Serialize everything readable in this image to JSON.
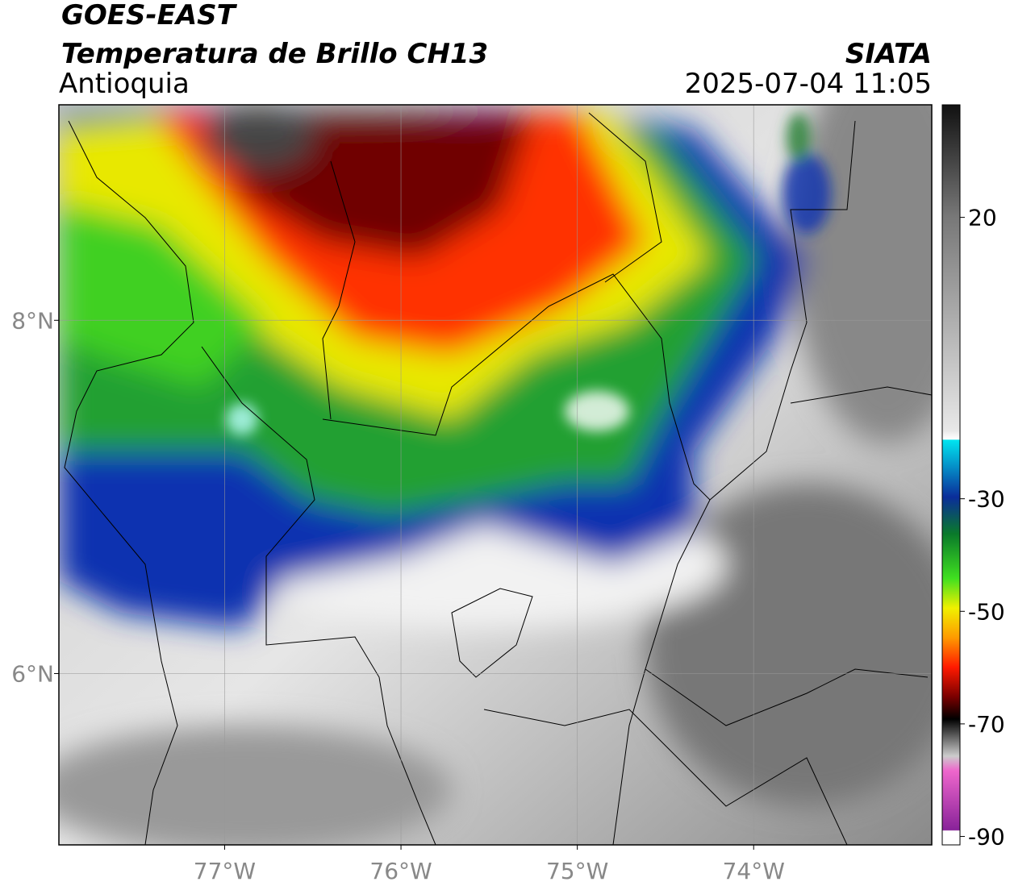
{
  "header": {
    "title": "GOES-EAST",
    "subtitle": "Temperatura de Brillo CH13",
    "region": "Antioquia",
    "source": "SIATA",
    "datetime": "2025-07-04 11:05"
  },
  "map": {
    "xlim": [
      -77.94,
      -72.99
    ],
    "ylim": [
      5.03,
      9.22
    ],
    "xticks": [
      {
        "value": -77,
        "label": "77°W"
      },
      {
        "value": -76,
        "label": "76°W"
      },
      {
        "value": -75,
        "label": "75°W"
      },
      {
        "value": -74,
        "label": "74°W"
      }
    ],
    "yticks": [
      {
        "value": 8,
        "label": "8°N"
      },
      {
        "value": 6,
        "label": "6°N"
      }
    ]
  },
  "colorbar": {
    "lim": [
      -91.5,
      40
    ],
    "ticks": [
      20,
      -30,
      -50,
      -70,
      -90
    ]
  }
}
